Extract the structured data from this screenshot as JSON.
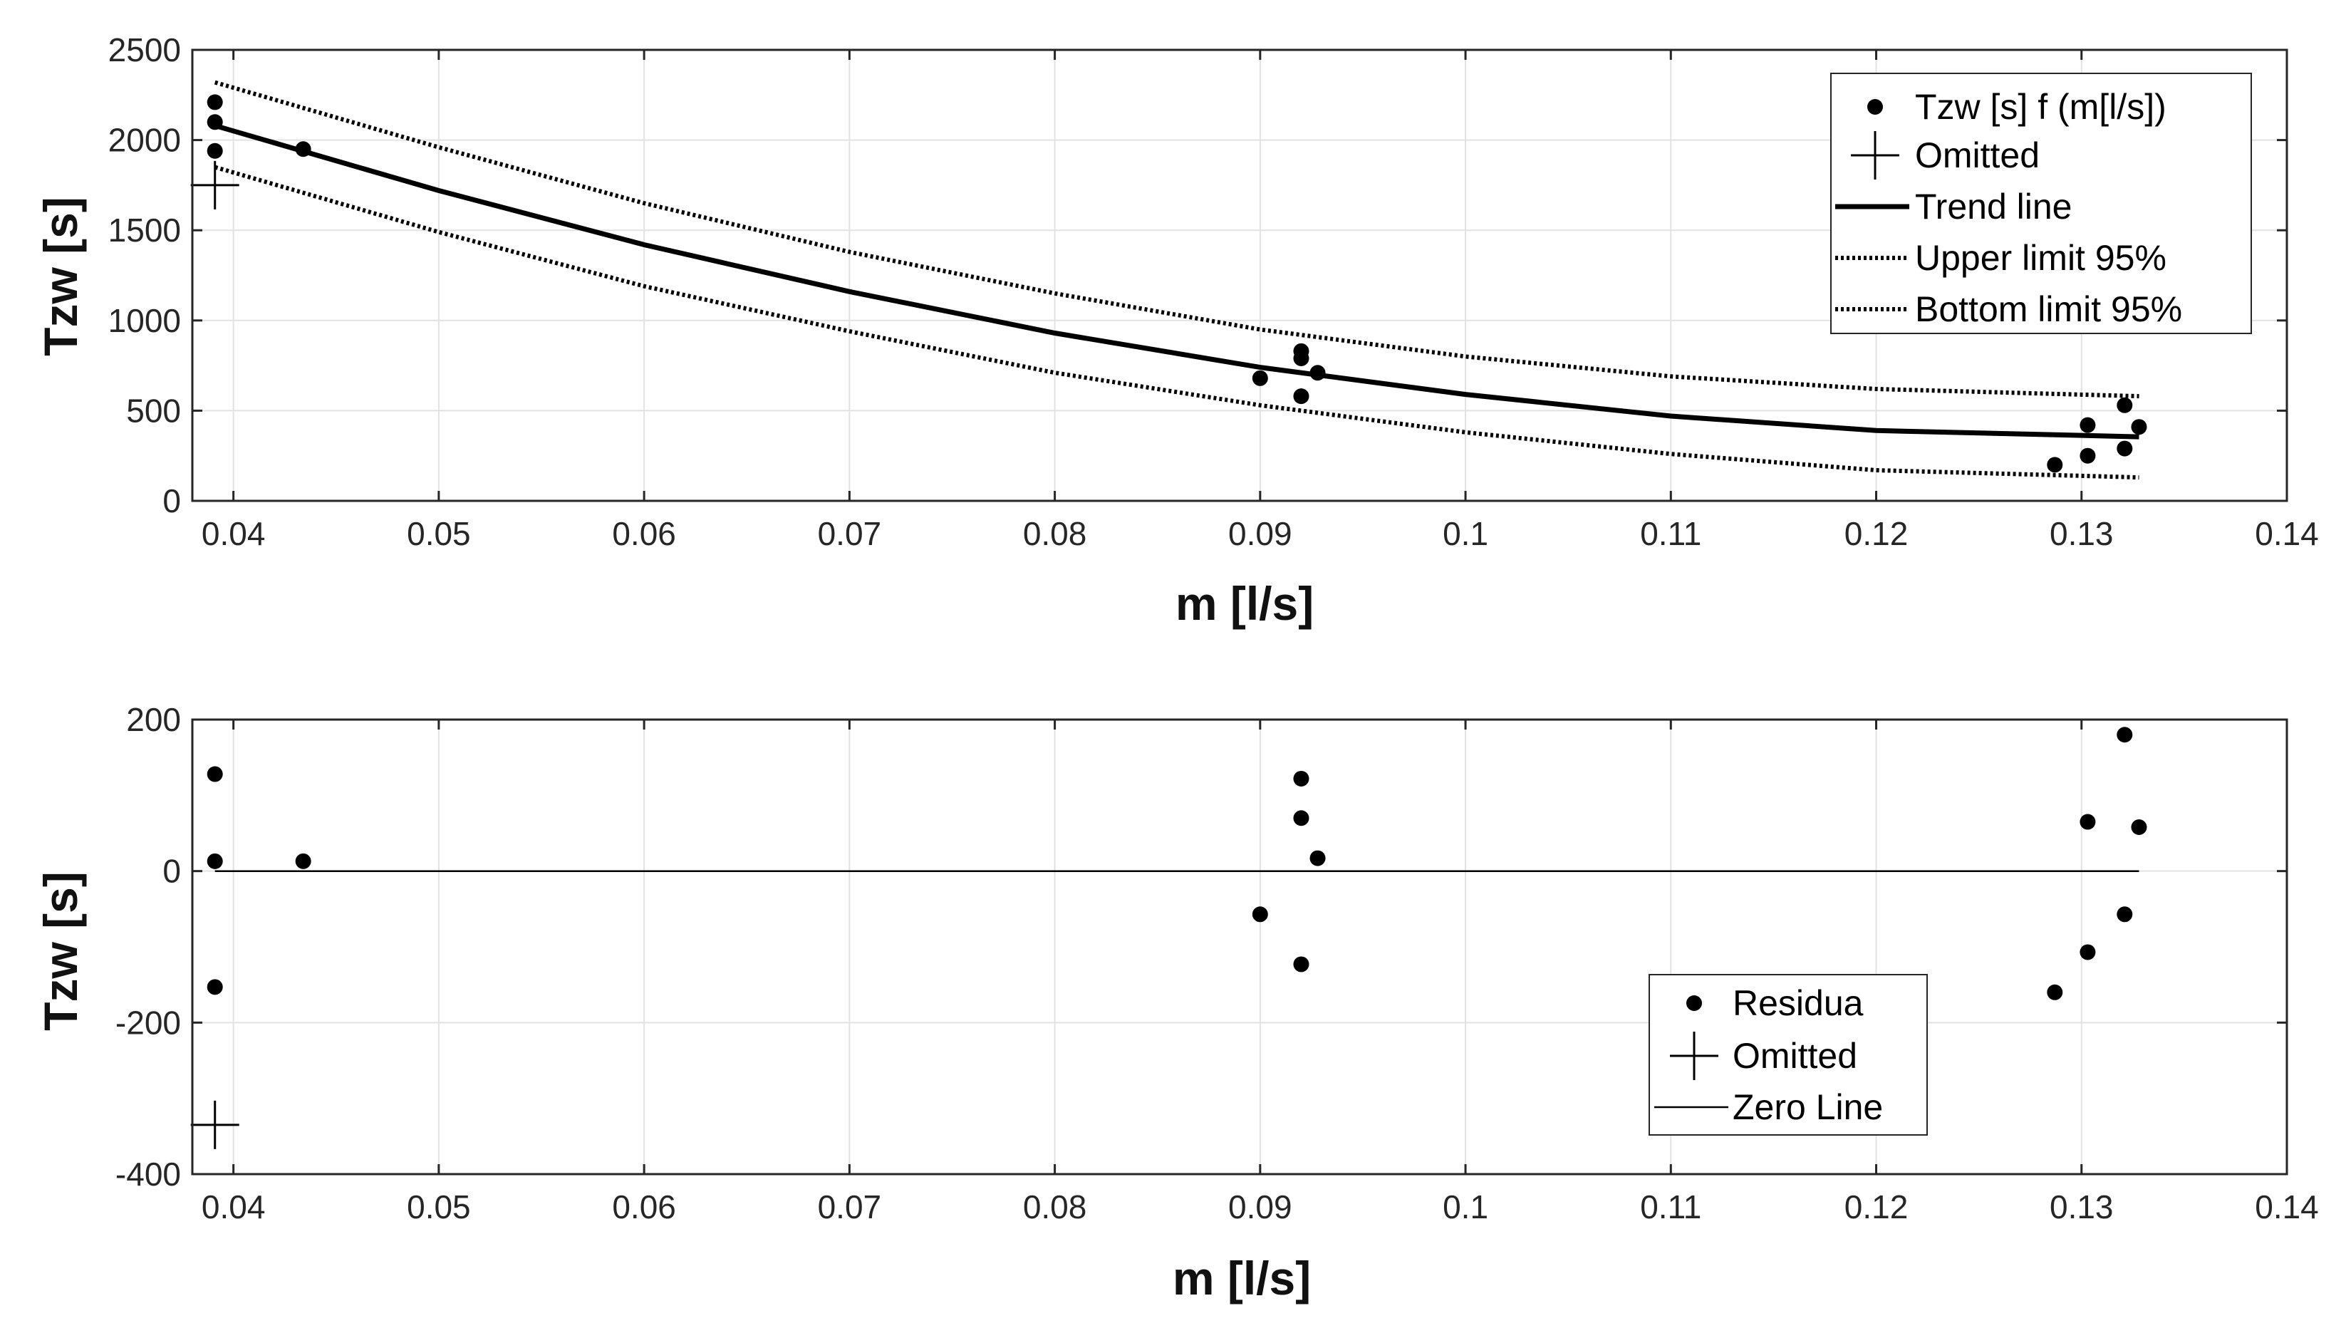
{
  "chart_data": [
    {
      "type": "scatter",
      "xlabel": "m [l/s]",
      "ylabel": "Tzw [s]",
      "xlim": [
        0.038,
        0.14
      ],
      "ylim": [
        0,
        2500
      ],
      "grid": true,
      "xticks": [
        0.04,
        0.05,
        0.06,
        0.07,
        0.08,
        0.09,
        0.1,
        0.11,
        0.12,
        0.13,
        0.14
      ],
      "xtick_labels": [
        "0.04",
        "0.05",
        "0.06",
        "0.07",
        "0.08",
        "0.09",
        "0.1",
        "0.11",
        "0.12",
        "0.13",
        "0.14"
      ],
      "yticks": [
        0,
        500,
        1000,
        1500,
        2000,
        2500
      ],
      "ytick_labels": [
        "0",
        "500",
        "1000",
        "1500",
        "2000",
        "2500"
      ],
      "legend_position": "top-right",
      "points": {
        "name": "Tzw [s] f (m[l/s])",
        "x": [
          0.0391,
          0.0391,
          0.0391,
          0.0434,
          0.09,
          0.092,
          0.092,
          0.092,
          0.0928,
          0.1287,
          0.1303,
          0.1303,
          0.1321,
          0.1321,
          0.1328
        ],
        "y": [
          2210,
          2100,
          1940,
          1950,
          680,
          830,
          790,
          580,
          710,
          200,
          250,
          420,
          530,
          290,
          410
        ]
      },
      "omitted": {
        "name": "Omitted",
        "x": [
          0.0391
        ],
        "y": [
          1750
        ]
      },
      "trend": {
        "name": "Trend line",
        "x": [
          0.0391,
          0.05,
          0.06,
          0.07,
          0.08,
          0.09,
          0.1,
          0.11,
          0.12,
          0.1328
        ],
        "y": [
          2080,
          1720,
          1420,
          1160,
          930,
          740,
          590,
          470,
          390,
          355
        ]
      },
      "upper": {
        "name": "Upper limit 95%",
        "x": [
          0.0391,
          0.05,
          0.06,
          0.07,
          0.08,
          0.09,
          0.1,
          0.11,
          0.12,
          0.1328
        ],
        "y": [
          2320,
          1960,
          1650,
          1380,
          1150,
          950,
          800,
          690,
          620,
          580
        ]
      },
      "lower": {
        "name": "Bottom limit 95%",
        "x": [
          0.0391,
          0.05,
          0.06,
          0.07,
          0.08,
          0.09,
          0.1,
          0.11,
          0.12,
          0.1328
        ],
        "y": [
          1850,
          1490,
          1190,
          940,
          710,
          530,
          380,
          260,
          170,
          130
        ]
      }
    },
    {
      "type": "scatter",
      "xlabel": "m [l/s]",
      "ylabel": "Tzw [s]",
      "xlim": [
        0.038,
        0.14
      ],
      "ylim": [
        -400,
        200
      ],
      "grid": true,
      "xticks": [
        0.04,
        0.05,
        0.06,
        0.07,
        0.08,
        0.09,
        0.1,
        0.11,
        0.12,
        0.13,
        0.14
      ],
      "xtick_labels": [
        "0.04",
        "0.05",
        "0.06",
        "0.07",
        "0.08",
        "0.09",
        "0.1",
        "0.11",
        "0.12",
        "0.13",
        "0.14"
      ],
      "yticks": [
        -400,
        -200,
        0,
        200
      ],
      "ytick_labels": [
        "-400",
        "-200",
        "0",
        "200"
      ],
      "legend_position": "bottom-center-right",
      "points": {
        "name": "Residua",
        "x": [
          0.0391,
          0.0391,
          0.0391,
          0.0434,
          0.09,
          0.092,
          0.092,
          0.092,
          0.0928,
          0.1287,
          0.1303,
          0.1303,
          0.1321,
          0.1321,
          0.1328
        ],
        "y": [
          128,
          13,
          -153,
          13,
          -57,
          122,
          70,
          -123,
          17,
          -160,
          -107,
          65,
          180,
          -57,
          58
        ]
      },
      "omitted": {
        "name": "Omitted",
        "x": [
          0.0391
        ],
        "y": [
          -335
        ]
      },
      "zero": {
        "name": "Zero Line",
        "x": [
          0.0391,
          0.1328
        ],
        "y": [
          0,
          0
        ]
      }
    }
  ]
}
